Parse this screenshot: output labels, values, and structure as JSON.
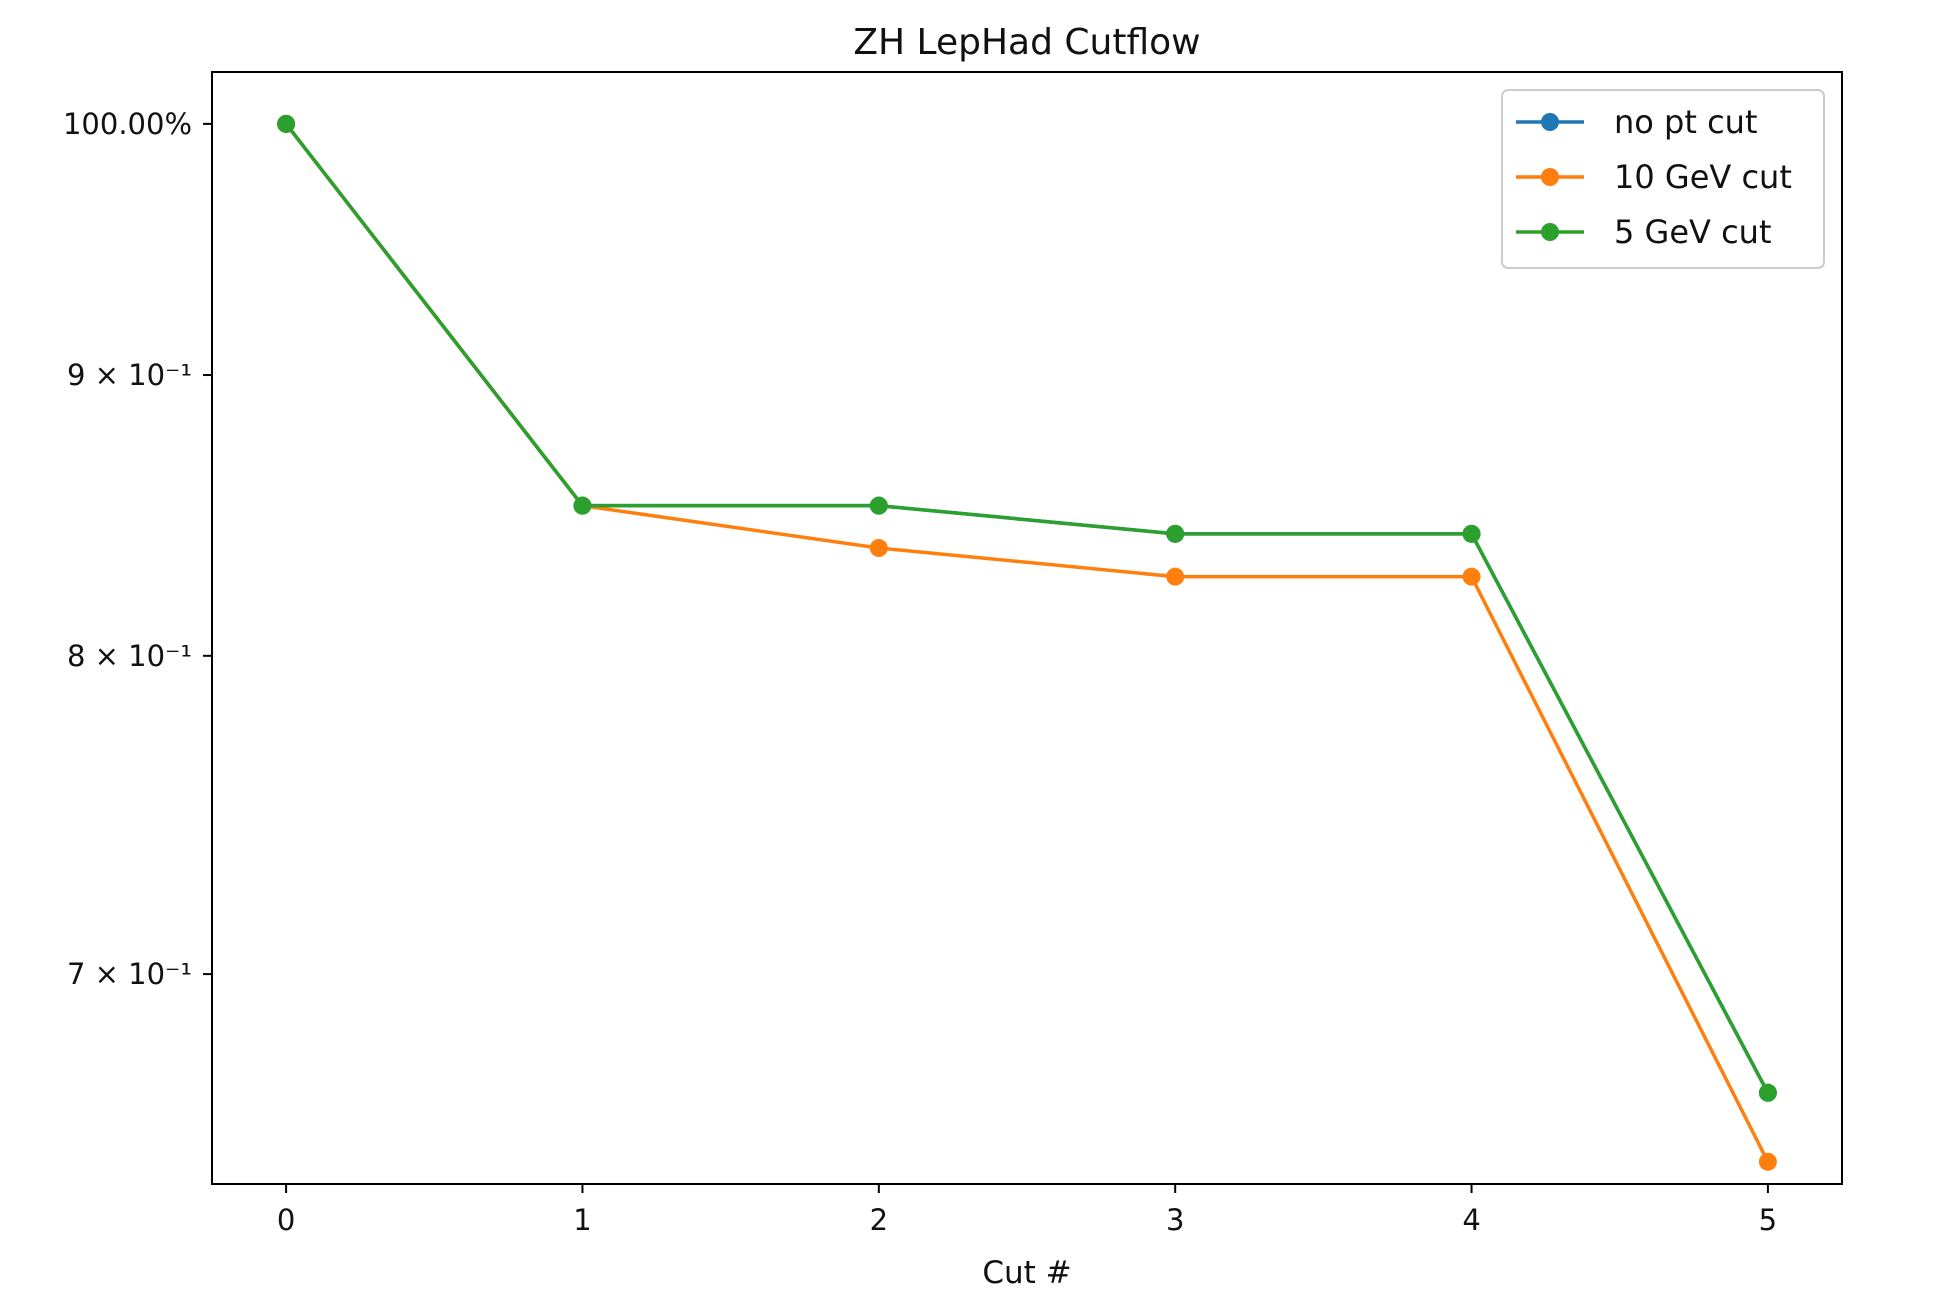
{
  "chart_data": {
    "type": "line",
    "title": "ZH LepHad Cutflow",
    "xlabel": "Cut #",
    "ylabel": "",
    "x": [
      0,
      1,
      2,
      3,
      4,
      5
    ],
    "xticks": [
      "0",
      "1",
      "2",
      "3",
      "4",
      "5"
    ],
    "xlim": [
      -0.25,
      5.25
    ],
    "yscale": "log",
    "ylim": [
      0.641,
      1.022
    ],
    "yticks": [
      {
        "value": 1.0,
        "label": "100.00%"
      },
      {
        "value": 0.9,
        "label": "9 × 10⁻¹"
      },
      {
        "value": 0.8,
        "label": "8 × 10⁻¹"
      },
      {
        "value": 0.7,
        "label": "7 × 10⁻¹"
      }
    ],
    "grid": false,
    "legend_position": "top-right",
    "series": [
      {
        "name": "no pt cut",
        "color": "#1f77b4",
        "values": [
          1.0,
          0.852,
          0.852,
          0.842,
          0.842,
          0.666
        ]
      },
      {
        "name": "10 GeV cut",
        "color": "#ff7f0e",
        "values": [
          1.0,
          0.852,
          0.837,
          0.827,
          0.827,
          0.647
        ]
      },
      {
        "name": "5 GeV cut",
        "color": "#2ca02c",
        "values": [
          1.0,
          0.852,
          0.852,
          0.842,
          0.842,
          0.666
        ]
      }
    ]
  }
}
